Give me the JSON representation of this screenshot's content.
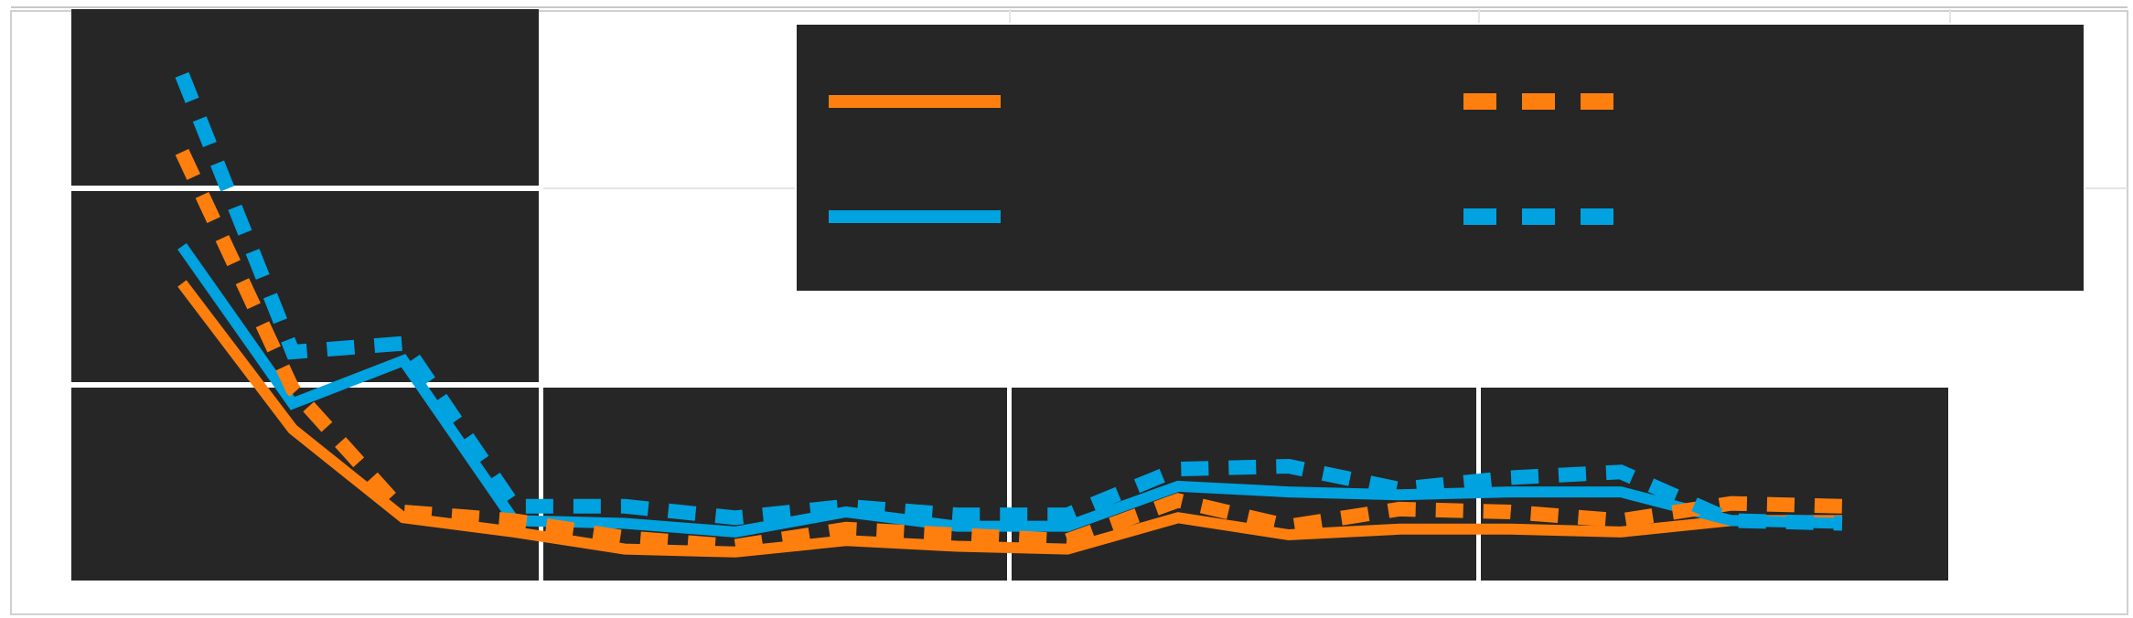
{
  "chart_data": {
    "type": "line",
    "title": "",
    "xlabel": "",
    "ylabel": "",
    "x": [
      1,
      2,
      3,
      4,
      5,
      6,
      7,
      8,
      9,
      10,
      11,
      12,
      13,
      14,
      15,
      16
    ],
    "xlim": [
      0,
      17
    ],
    "ylim": [
      0,
      10
    ],
    "grid": true,
    "legend": "top-right",
    "series": [
      {
        "color": "#ff7f0e",
        "dash": "solid",
        "values": [
          5.2,
          2.65,
          1.1,
          0.85,
          0.55,
          0.5,
          0.7,
          0.6,
          0.55,
          1.1,
          0.8,
          0.9,
          0.9,
          0.85,
          1.05,
          1.05
        ]
      },
      {
        "color": "#00a2e0",
        "dash": "solid",
        "values": [
          5.85,
          3.1,
          3.85,
          1.05,
          1.0,
          0.85,
          1.2,
          0.95,
          0.95,
          1.65,
          1.55,
          1.5,
          1.55,
          1.55,
          1.05,
          1.0
        ]
      },
      {
        "color": "#ff7f0e",
        "dash": "dashed",
        "values": [
          7.5,
          3.35,
          1.2,
          1.05,
          0.75,
          0.6,
          0.9,
          0.8,
          0.7,
          1.4,
          0.95,
          1.25,
          1.2,
          1.05,
          1.35,
          1.3
        ]
      },
      {
        "color": "#00a2e0",
        "dash": "dashed",
        "values": [
          8.85,
          4.0,
          4.15,
          1.3,
          1.3,
          1.1,
          1.3,
          1.15,
          1.15,
          1.95,
          2.0,
          1.6,
          1.8,
          1.9,
          1.05,
          1.0
        ]
      }
    ]
  }
}
